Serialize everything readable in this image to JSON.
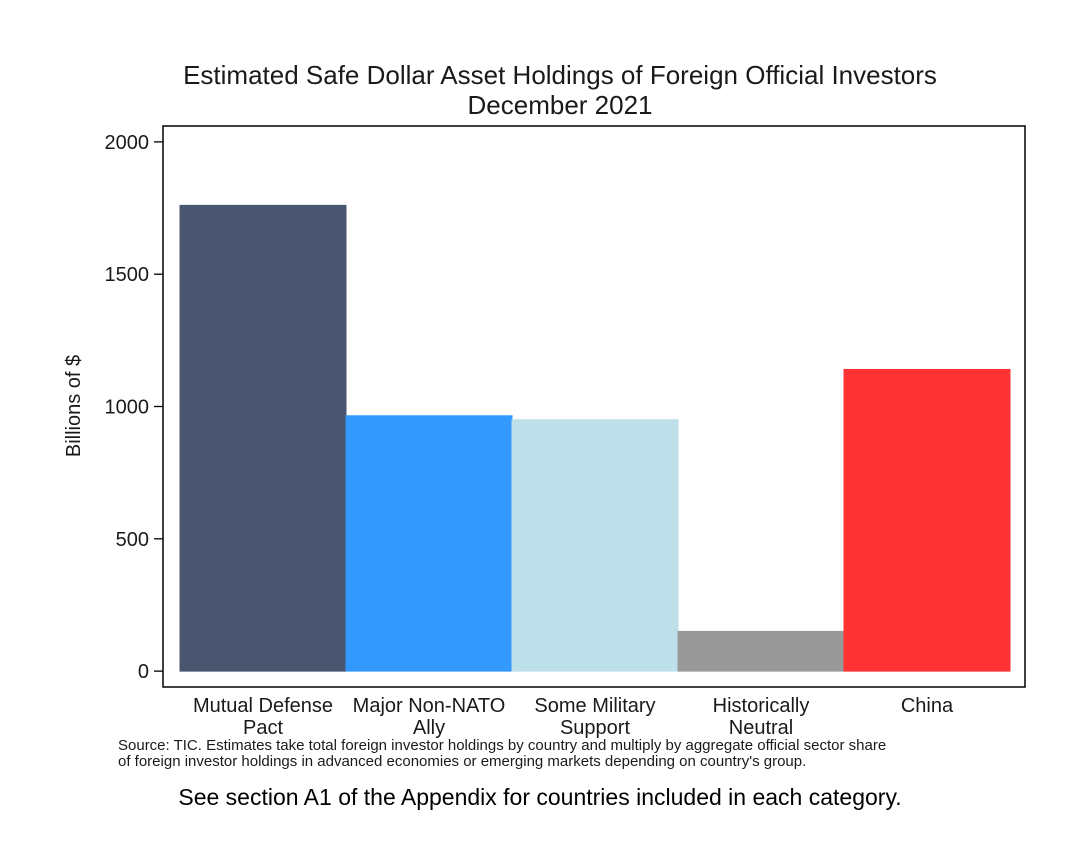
{
  "chart_data": {
    "type": "bar",
    "title": "Estimated Safe Dollar Asset Holdings of Foreign Official Investors",
    "subtitle": "December 2021",
    "xlabel": "",
    "ylabel": "Billions of $",
    "ylim": [
      -60,
      2060
    ],
    "yticks": [
      0,
      500,
      1000,
      1500,
      2000
    ],
    "grid": false,
    "categories": [
      [
        "Mutual Defense",
        "Pact"
      ],
      [
        "Major Non-NATO",
        "Ally"
      ],
      [
        "Some Military",
        "Support"
      ],
      [
        "Historically",
        "Neutral"
      ],
      [
        "China"
      ]
    ],
    "values": [
      1760,
      965,
      950,
      150,
      1140
    ],
    "colors": [
      "#4a5570",
      "#3399ff",
      "#bee0ea",
      "#999999",
      "#ff3333"
    ]
  },
  "notes": {
    "source_line1": "Source: TIC.  Estimates take total foreign investor holdings by country and multiply by aggregate official sector share",
    "source_line2": "of foreign investor holdings in advanced economies or emerging markets depending on country's group.",
    "appendix": "See section A1 of the Appendix for countries included in each category."
  }
}
